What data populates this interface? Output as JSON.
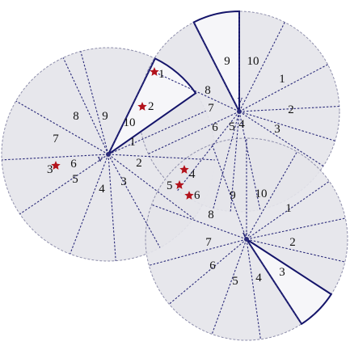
{
  "colors": {
    "disk_fill": "#e4e4ea",
    "disk_stroke": "#8e8eab",
    "sector_line": "#2b2b7a",
    "highlight_fill": "#f6f6f9",
    "highlight_stroke": "#14146a",
    "star": "#b3121b",
    "background": "#ffffff"
  },
  "sensors": [
    {
      "id": "left",
      "center_label": "v",
      "sector_labels": [
        "1",
        "2",
        "3",
        "4",
        "5",
        "6",
        "7",
        "8",
        "9",
        "10"
      ]
    },
    {
      "id": "top-right",
      "center_label": "v",
      "sector_labels": [
        "1",
        "2",
        "3",
        "4",
        "5",
        "6",
        "7",
        "8",
        "9",
        "10"
      ]
    },
    {
      "id": "bottom",
      "center_label": "v",
      "sector_labels": [
        "1",
        "2",
        "3",
        "4",
        "5",
        "6",
        "7",
        "8",
        "9",
        "10"
      ]
    }
  ],
  "targets": {
    "group_a": [
      "1",
      "2"
    ],
    "group_b": [
      "3",
      "4",
      "5",
      "6"
    ]
  }
}
